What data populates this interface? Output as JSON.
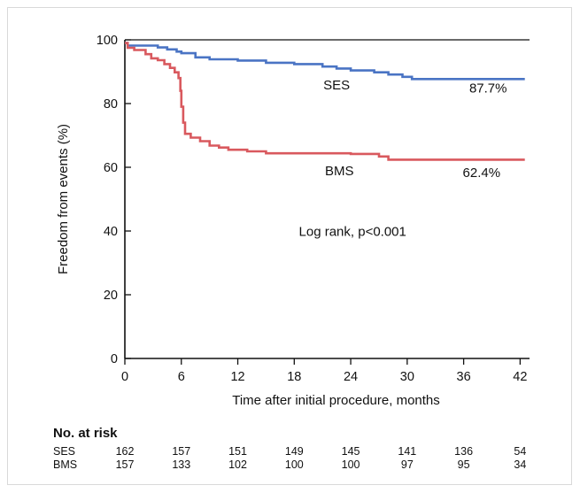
{
  "chart_data": {
    "type": "line",
    "ylabel": "Freedom from events (%)",
    "xlabel": "Time after initial procedure, months",
    "xlim": [
      0,
      43
    ],
    "ylim": [
      0,
      100
    ],
    "xticks": [
      0,
      6,
      12,
      18,
      24,
      30,
      36,
      42
    ],
    "yticks": [
      0,
      20,
      40,
      60,
      80,
      100
    ],
    "grid": false,
    "series": [
      {
        "name": "SES",
        "color": "#4a74c4",
        "end_label": "87.7%",
        "steps": [
          [
            0,
            99
          ],
          [
            0.3,
            98.2
          ],
          [
            3.5,
            97.6
          ],
          [
            4.5,
            97
          ],
          [
            5.5,
            96.3
          ],
          [
            6,
            95.8
          ],
          [
            7.5,
            94.5
          ],
          [
            9,
            93.9
          ],
          [
            12,
            93.5
          ],
          [
            15,
            92.8
          ],
          [
            18,
            92.4
          ],
          [
            21,
            91.6
          ],
          [
            22.5,
            91
          ],
          [
            24,
            90.4
          ],
          [
            26.5,
            89.8
          ],
          [
            28,
            89.1
          ],
          [
            29.5,
            88.4
          ],
          [
            30.5,
            87.7
          ],
          [
            42.5,
            87.7
          ]
        ]
      },
      {
        "name": "BMS",
        "color": "#d9595e",
        "end_label": "62.4%",
        "steps": [
          [
            0,
            99
          ],
          [
            0.3,
            97.5
          ],
          [
            1,
            96.8
          ],
          [
            2.2,
            95.5
          ],
          [
            2.8,
            94.2
          ],
          [
            3.5,
            93.6
          ],
          [
            4.2,
            92.4
          ],
          [
            4.8,
            91.2
          ],
          [
            5.3,
            89.8
          ],
          [
            5.7,
            88
          ],
          [
            5.9,
            84
          ],
          [
            6,
            79
          ],
          [
            6.2,
            74
          ],
          [
            6.4,
            70.5
          ],
          [
            7,
            69.3
          ],
          [
            8,
            68.2
          ],
          [
            9,
            66.8
          ],
          [
            10,
            66.2
          ],
          [
            11,
            65.5
          ],
          [
            13,
            65
          ],
          [
            15,
            64.4
          ],
          [
            18,
            64.4
          ],
          [
            24,
            64.2
          ],
          [
            27,
            63.4
          ],
          [
            28,
            62.4
          ],
          [
            42.5,
            62.4
          ]
        ]
      }
    ],
    "annotation": "Log rank, p<0.001"
  },
  "risk_table": {
    "title": "No. at risk",
    "months": [
      0,
      6,
      12,
      18,
      24,
      30,
      36,
      42
    ],
    "rows": [
      {
        "name": "SES",
        "values": [
          "162",
          "157",
          "151",
          "149",
          "145",
          "141",
          "136",
          "54"
        ]
      },
      {
        "name": "BMS",
        "values": [
          "157",
          "133",
          "102",
          "100",
          "100",
          "97",
          "95",
          "34"
        ]
      }
    ]
  }
}
